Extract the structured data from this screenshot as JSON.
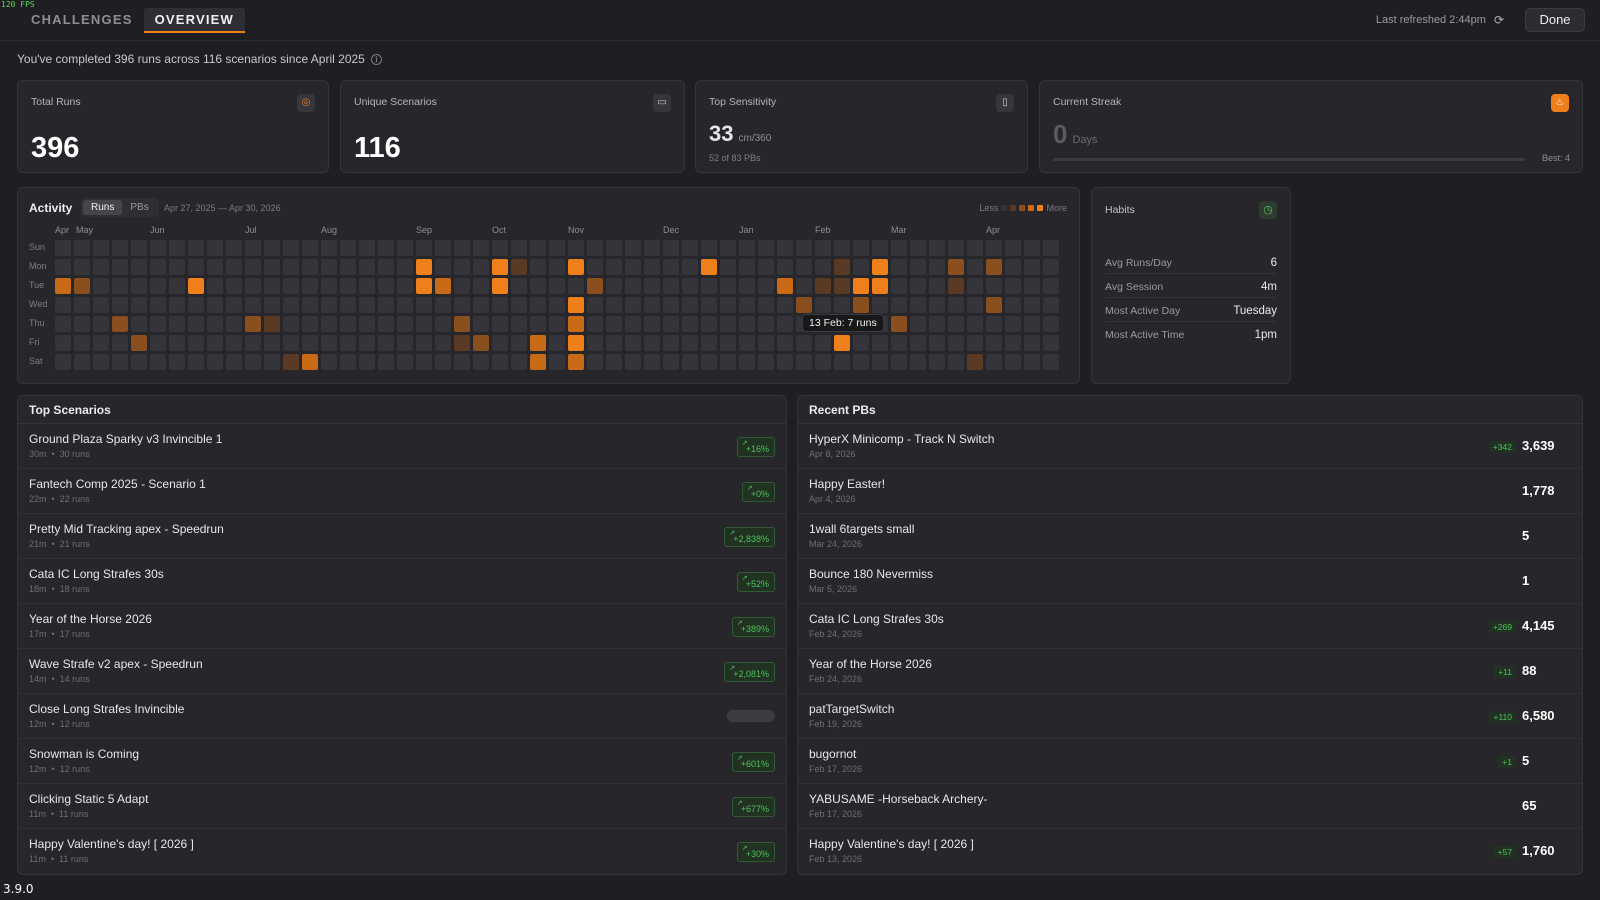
{
  "fps": "120 FPS",
  "version": "3.9.0",
  "nav": {
    "tabs": [
      {
        "label": "CHALLENGES",
        "active": false
      },
      {
        "label": "OVERVIEW",
        "active": true
      }
    ],
    "refreshed": "Last refreshed 2:44pm",
    "done_label": "Done"
  },
  "summary": "You've completed 396 runs across 116 scenarios since April 2025",
  "stats": {
    "total_runs": {
      "label": "Total Runs",
      "value": "396",
      "icon": "target-icon"
    },
    "unique": {
      "label": "Unique Scenarios",
      "value": "116",
      "icon": "gamepad-icon"
    },
    "sensitivity": {
      "label": "Top Sensitivity",
      "value": "33",
      "unit": "cm/360",
      "sub": "52 of 83 PBs",
      "icon": "mouse-icon"
    },
    "streak": {
      "label": "Current Streak",
      "value": "0",
      "unit": "Days",
      "best": "Best: 4",
      "progress": 0,
      "icon": "flame-icon"
    }
  },
  "activity": {
    "title": "Activity",
    "toggle": [
      "Runs",
      "PBs"
    ],
    "active_toggle": "Runs",
    "range": "Apr 27, 2025 — Apr 30, 2026",
    "legend_less": "Less",
    "legend_more": "More",
    "months": [
      {
        "label": "Apr",
        "week": 0
      },
      {
        "label": "May",
        "week": 1
      },
      {
        "label": "Jun",
        "week": 5
      },
      {
        "label": "Jul",
        "week": 10
      },
      {
        "label": "Aug",
        "week": 14
      },
      {
        "label": "Sep",
        "week": 19
      },
      {
        "label": "Oct",
        "week": 23
      },
      {
        "label": "Nov",
        "week": 27
      },
      {
        "label": "Dec",
        "week": 32
      },
      {
        "label": "Jan",
        "week": 36
      },
      {
        "label": "Feb",
        "week": 40
      },
      {
        "label": "Mar",
        "week": 44
      },
      {
        "label": "Apr",
        "week": 49
      }
    ],
    "days": [
      "Sun",
      "Mon",
      "Tue",
      "Wed",
      "Thu",
      "Fri",
      "Sat"
    ],
    "weeks": 53,
    "active_cells": [
      [
        0,
        2,
        3
      ],
      [
        1,
        2,
        2
      ],
      [
        4,
        5,
        2
      ],
      [
        3,
        4,
        2
      ],
      [
        7,
        2,
        4
      ],
      [
        10,
        4,
        2
      ],
      [
        11,
        4,
        1
      ],
      [
        12,
        6,
        1
      ],
      [
        13,
        6,
        3
      ],
      [
        19,
        1,
        4
      ],
      [
        19,
        2,
        4
      ],
      [
        20,
        2,
        3
      ],
      [
        21,
        5,
        1
      ],
      [
        21,
        4,
        2
      ],
      [
        22,
        5,
        2
      ],
      [
        23,
        1,
        4
      ],
      [
        23,
        2,
        4
      ],
      [
        24,
        1,
        1
      ],
      [
        25,
        5,
        3
      ],
      [
        25,
        6,
        3
      ],
      [
        27,
        1,
        4
      ],
      [
        27,
        3,
        4
      ],
      [
        27,
        4,
        3
      ],
      [
        27,
        5,
        4
      ],
      [
        27,
        6,
        3
      ],
      [
        28,
        2,
        2
      ],
      [
        34,
        1,
        4
      ],
      [
        38,
        2,
        3
      ],
      [
        39,
        3,
        2
      ],
      [
        40,
        2,
        1
      ],
      [
        41,
        1,
        1
      ],
      [
        41,
        2,
        1
      ],
      [
        41,
        5,
        4
      ],
      [
        42,
        2,
        4
      ],
      [
        42,
        3,
        2
      ],
      [
        43,
        1,
        4
      ],
      [
        43,
        2,
        4
      ],
      [
        44,
        4,
        2
      ],
      [
        47,
        1,
        2
      ],
      [
        47,
        2,
        1
      ],
      [
        49,
        1,
        2
      ],
      [
        49,
        3,
        2
      ],
      [
        48,
        6,
        1
      ]
    ],
    "tooltip": "13 Feb: 7 runs",
    "colors": {
      "empty": "#34343a",
      "l1": "#5a3a24",
      "l2": "#8a4f1e",
      "l3": "#c96b16",
      "l4": "#ef7f1a"
    }
  },
  "habits": {
    "title": "Habits",
    "rows": [
      {
        "label": "Avg Runs/Day",
        "value": "6"
      },
      {
        "label": "Avg Session",
        "value": "4m"
      },
      {
        "label": "Most Active Day",
        "value": "Tuesday"
      },
      {
        "label": "Most Active Time",
        "value": "1pm"
      }
    ]
  },
  "top_scenarios": {
    "title": "Top Scenarios",
    "rows": [
      {
        "name": "Ground Plaza Sparky v3 Invincible 1",
        "time": "30m",
        "runs": "30 runs",
        "change": "+16%"
      },
      {
        "name": "Fantech Comp 2025 - Scenario 1",
        "time": "22m",
        "runs": "22 runs",
        "change": "+0%"
      },
      {
        "name": "Pretty Mid Tracking apex - Speedrun",
        "time": "21m",
        "runs": "21 runs",
        "change": "+2,838%"
      },
      {
        "name": "Cata IC Long Strafes 30s",
        "time": "18m",
        "runs": "18 runs",
        "change": "+52%"
      },
      {
        "name": "Year of the Horse 2026",
        "time": "17m",
        "runs": "17 runs",
        "change": "+389%"
      },
      {
        "name": "Wave Strafe v2 apex - Speedrun",
        "time": "14m",
        "runs": "14 runs",
        "change": "+2,081%"
      },
      {
        "name": "Close Long Strafes Invincible",
        "time": "12m",
        "runs": "12 runs",
        "change": ""
      },
      {
        "name": "Snowman is Coming",
        "time": "12m",
        "runs": "12 runs",
        "change": "+601%"
      },
      {
        "name": "Clicking Static 5 Adapt",
        "time": "11m",
        "runs": "11 runs",
        "change": "+677%"
      },
      {
        "name": "Happy Valentine's day! [ 2026 ]",
        "time": "11m",
        "runs": "11 runs",
        "change": "+30%"
      }
    ]
  },
  "recent_pbs": {
    "title": "Recent PBs",
    "rows": [
      {
        "name": "HyperX Minicomp - Track N Switch",
        "date": "Apr 8, 2026",
        "delta": "+342",
        "score": "3,639"
      },
      {
        "name": "Happy Easter!",
        "date": "Apr 4, 2026",
        "delta": "",
        "score": "1,778"
      },
      {
        "name": "1wall 6targets small",
        "date": "Mar 24, 2026",
        "delta": "",
        "score": "5"
      },
      {
        "name": "Bounce 180 Nevermiss",
        "date": "Mar 5, 2026",
        "delta": "",
        "score": "1"
      },
      {
        "name": "Cata IC Long Strafes 30s",
        "date": "Feb 24, 2026",
        "delta": "+269",
        "score": "4,145"
      },
      {
        "name": "Year of the Horse 2026",
        "date": "Feb 24, 2026",
        "delta": "+11",
        "score": "88"
      },
      {
        "name": "patTargetSwitch",
        "date": "Feb 19, 2026",
        "delta": "+110",
        "score": "6,580"
      },
      {
        "name": "bugornot",
        "date": "Feb 17, 2026",
        "delta": "+1",
        "score": "5"
      },
      {
        "name": "YABUSAME -Horseback Archery-",
        "date": "Feb 17, 2026",
        "delta": "",
        "score": "65"
      },
      {
        "name": "Happy Valentine's day! [ 2026 ]",
        "date": "Feb 13, 2026",
        "delta": "+57",
        "score": "1,760"
      }
    ]
  }
}
